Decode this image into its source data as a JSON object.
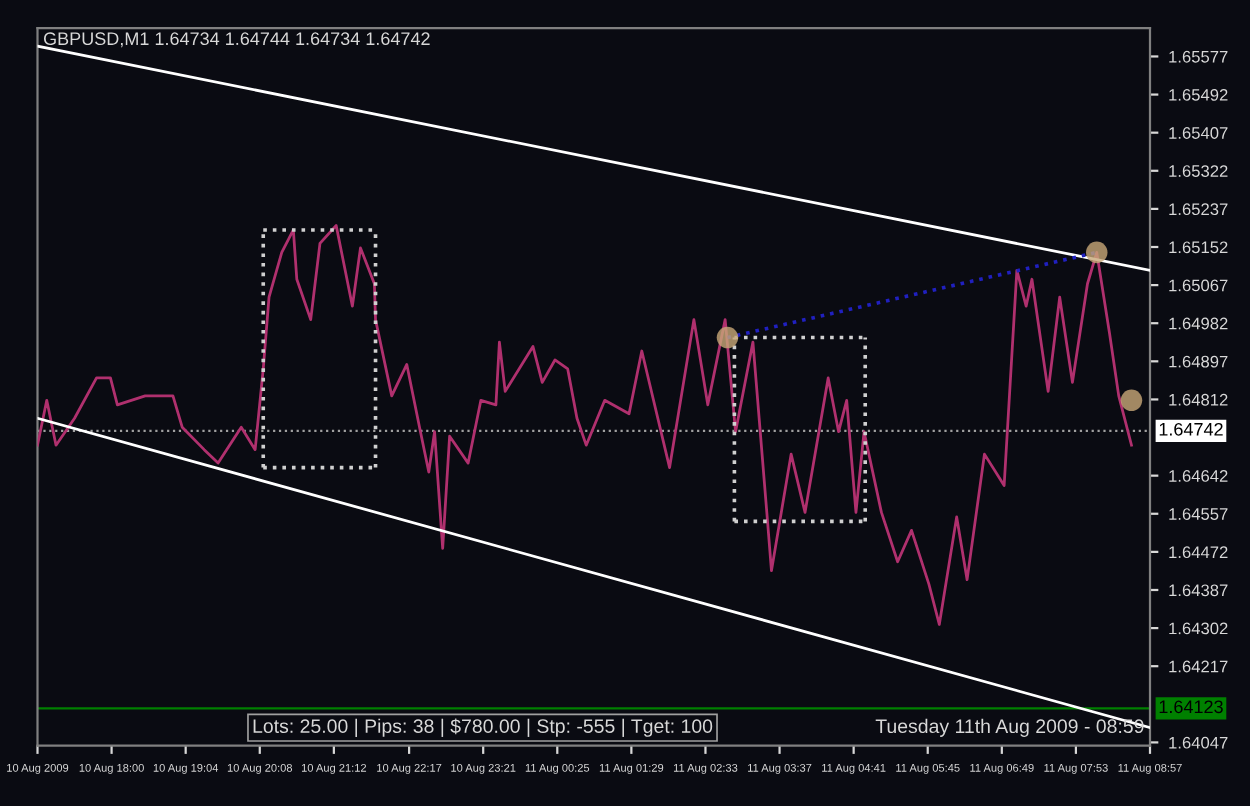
{
  "chart_data": {
    "type": "line",
    "title": "GBPUSD,M1 1.64734 1.64744 1.64734 1.64742",
    "annotations": [
      "Lots: 25.00 | Pips: 38 | $780.00 | Stp: -555 | Tget: 100",
      "Tuesday 11th Aug 2009 - 08:59"
    ],
    "xlim": [
      "2009-08-10T16:56",
      "2009-08-11T08:57"
    ],
    "ylim": [
      1.6404,
      1.6564
    ],
    "xticks": [
      {
        "value": "2009-08-10T16:56",
        "label": "10 Aug 2009"
      },
      {
        "value": "2009-08-10T18:00",
        "label": "10 Aug 18:00"
      },
      {
        "value": "2009-08-10T19:04",
        "label": "10 Aug 19:04"
      },
      {
        "value": "2009-08-10T20:08",
        "label": "10 Aug 20:08"
      },
      {
        "value": "2009-08-10T21:12",
        "label": "10 Aug 21:12"
      },
      {
        "value": "2009-08-10T22:17",
        "label": "10 Aug 22:17"
      },
      {
        "value": "2009-08-10T23:21",
        "label": "10 Aug 23:21"
      },
      {
        "value": "2009-08-11T00:25",
        "label": "11 Aug 00:25"
      },
      {
        "value": "2009-08-11T01:29",
        "label": "11 Aug 01:29"
      },
      {
        "value": "2009-08-11T02:33",
        "label": "11 Aug 02:33"
      },
      {
        "value": "2009-08-11T03:37",
        "label": "11 Aug 03:37"
      },
      {
        "value": "2009-08-11T04:41",
        "label": "11 Aug 04:41"
      },
      {
        "value": "2009-08-11T05:45",
        "label": "11 Aug 05:45"
      },
      {
        "value": "2009-08-11T06:49",
        "label": "11 Aug 06:49"
      },
      {
        "value": "2009-08-11T07:53",
        "label": "11 Aug 07:53"
      },
      {
        "value": "2009-08-11T08:57",
        "label": "11 Aug 08:57"
      }
    ],
    "yticks": [
      1.64047,
      1.64217,
      1.64302,
      1.64387,
      1.64472,
      1.64557,
      1.64642,
      1.64812,
      1.64897,
      1.64982,
      1.65067,
      1.65152,
      1.65237,
      1.65322,
      1.65407,
      1.65492,
      1.65577
    ],
    "ref_lines": [
      {
        "axis": "y",
        "value": 1.64742,
        "label": "1.64742",
        "color": "#a0a0a0",
        "line_style": "dotted"
      },
      {
        "axis": "y",
        "value": 1.64123,
        "label": "1.64123",
        "color": "#008000",
        "line_style": "solid"
      }
    ],
    "grid": false,
    "marker": "none",
    "series": [
      {
        "color": "#b0306e",
        "line_style": "solid",
        "x": [
          "2009-08-10T16:56",
          "2009-08-10T17:04",
          "2009-08-10T17:12",
          "2009-08-10T17:28",
          "2009-08-10T17:47",
          "2009-08-10T17:59",
          "2009-08-10T18:05",
          "2009-08-10T18:29",
          "2009-08-10T18:53",
          "2009-08-10T19:01",
          "2009-08-10T19:20",
          "2009-08-10T19:32",
          "2009-08-10T19:52",
          "2009-08-10T20:04",
          "2009-08-10T20:11",
          "2009-08-10T20:16",
          "2009-08-10T20:27",
          "2009-08-10T20:37",
          "2009-08-10T20:40",
          "2009-08-10T20:52",
          "2009-08-10T21:00",
          "2009-08-10T21:14",
          "2009-08-10T21:28",
          "2009-08-10T21:35",
          "2009-08-10T21:47",
          "2009-08-10T21:48",
          "2009-08-10T22:02",
          "2009-08-10T22:15",
          "2009-08-10T22:26",
          "2009-08-10T22:34",
          "2009-08-10T22:39",
          "2009-08-10T22:46",
          "2009-08-10T22:52",
          "2009-08-10T23:08",
          "2009-08-10T23:19",
          "2009-08-10T23:32",
          "2009-08-10T23:35",
          "2009-08-10T23:40",
          "2009-08-11T00:04",
          "2009-08-11T00:12",
          "2009-08-11T00:23",
          "2009-08-11T00:34",
          "2009-08-11T00:42",
          "2009-08-11T00:50",
          "2009-08-11T01:06",
          "2009-08-11T01:27",
          "2009-08-11T01:38",
          "2009-08-11T02:02",
          "2009-08-11T02:23",
          "2009-08-11T02:35",
          "2009-08-11T02:50",
          "2009-08-11T02:59",
          "2009-08-11T03:14",
          "2009-08-11T03:26",
          "2009-08-11T03:30",
          "2009-08-11T03:47",
          "2009-08-11T03:59",
          "2009-08-11T04:19",
          "2009-08-11T04:28",
          "2009-08-11T04:35",
          "2009-08-11T04:43",
          "2009-08-11T04:50",
          "2009-08-11T05:05",
          "2009-08-11T05:19",
          "2009-08-11T05:31",
          "2009-08-11T05:46",
          "2009-08-11T05:55",
          "2009-08-11T06:10",
          "2009-08-11T06:19",
          "2009-08-11T06:34",
          "2009-08-11T06:51",
          "2009-08-11T07:02",
          "2009-08-11T07:10",
          "2009-08-11T07:15",
          "2009-08-11T07:29",
          "2009-08-11T07:39",
          "2009-08-11T07:50",
          "2009-08-11T08:03",
          "2009-08-11T08:11",
          "2009-08-11T08:22",
          "2009-08-11T08:30",
          "2009-08-11T08:41"
        ],
        "values": [
          1.6471,
          1.6481,
          1.6471,
          1.6477,
          1.6486,
          1.6486,
          1.648,
          1.6482,
          1.6482,
          1.6475,
          1.647,
          1.6467,
          1.6475,
          1.647,
          1.6488,
          1.6504,
          1.6514,
          1.6519,
          1.6508,
          1.6499,
          1.6516,
          1.652,
          1.6502,
          1.6515,
          1.6507,
          1.6499,
          1.6482,
          1.6489,
          1.6475,
          1.6465,
          1.6474,
          1.6448,
          1.6473,
          1.6467,
          1.6481,
          1.648,
          1.6494,
          1.6483,
          1.6493,
          1.6485,
          1.649,
          1.6488,
          1.6477,
          1.6471,
          1.6481,
          1.6478,
          1.6492,
          1.6466,
          1.6499,
          1.648,
          1.6499,
          1.6474,
          1.6494,
          1.6456,
          1.6443,
          1.6469,
          1.6456,
          1.6486,
          1.6474,
          1.6481,
          1.6456,
          1.6474,
          1.6456,
          1.6445,
          1.6452,
          1.644,
          1.6431,
          1.6455,
          1.6441,
          1.6469,
          1.6462,
          1.651,
          1.6502,
          1.6508,
          1.6483,
          1.6504,
          1.6485,
          1.6507,
          1.6514,
          1.6496,
          1.6482,
          1.6471
        ]
      },
      {
        "type": "line",
        "color": "#ffffff",
        "line_style": "solid",
        "x": [
          "2009-08-10T16:56",
          "2009-08-11T08:57"
        ],
        "values": [
          1.656,
          1.651
        ]
      },
      {
        "type": "line",
        "color": "#ffffff",
        "line_style": "solid",
        "x": [
          "2009-08-10T16:56",
          "2009-08-11T08:57"
        ],
        "values": [
          1.6477,
          1.6408
        ]
      },
      {
        "type": "line",
        "color": "#d0d0d0",
        "line_style": "dotted",
        "x": [
          "2009-08-10T20:11",
          "2009-08-10T21:48"
        ],
        "values": [
          1.6519,
          1.6519
        ]
      },
      {
        "type": "line",
        "color": "#d0d0d0",
        "line_style": "dotted",
        "x": [
          "2009-08-10T20:11",
          "2009-08-10T21:48"
        ],
        "values": [
          1.6466,
          1.6466
        ]
      },
      {
        "type": "line",
        "color": "#d0d0d0",
        "line_style": "dotted",
        "x": [
          "2009-08-10T20:11",
          "2009-08-10T20:11"
        ],
        "values": [
          1.6466,
          1.6519
        ]
      },
      {
        "type": "line",
        "color": "#d0d0d0",
        "line_style": "dotted",
        "x": [
          "2009-08-10T21:48",
          "2009-08-10T21:48"
        ],
        "values": [
          1.6466,
          1.6519
        ]
      },
      {
        "type": "line",
        "color": "#d0d0d0",
        "line_style": "dotted",
        "x": [
          "2009-08-11T02:58",
          "2009-08-11T04:51"
        ],
        "values": [
          1.6495,
          1.6495
        ]
      },
      {
        "type": "line",
        "color": "#d0d0d0",
        "line_style": "dotted",
        "x": [
          "2009-08-11T02:58",
          "2009-08-11T04:51"
        ],
        "values": [
          1.6454,
          1.6454
        ]
      },
      {
        "type": "line",
        "color": "#d0d0d0",
        "line_style": "dotted",
        "x": [
          "2009-08-11T02:58",
          "2009-08-11T02:58"
        ],
        "values": [
          1.6454,
          1.6495
        ]
      },
      {
        "type": "line",
        "color": "#d0d0d0",
        "line_style": "dotted",
        "x": [
          "2009-08-11T04:51",
          "2009-08-11T04:51"
        ],
        "values": [
          1.6454,
          1.6495
        ]
      },
      {
        "type": "line",
        "color": "#2020c0",
        "line_style": "dotted",
        "x": [
          "2009-08-11T02:52",
          "2009-08-11T08:11"
        ],
        "values": [
          1.6495,
          1.6514
        ]
      },
      {
        "type": "scatter",
        "color": "#c8a878",
        "marker": "circle",
        "x": [
          "2009-08-11T02:52",
          "2009-08-11T08:11",
          "2009-08-11T08:41"
        ],
        "values": [
          1.6495,
          1.6514,
          1.6481
        ]
      }
    ]
  }
}
